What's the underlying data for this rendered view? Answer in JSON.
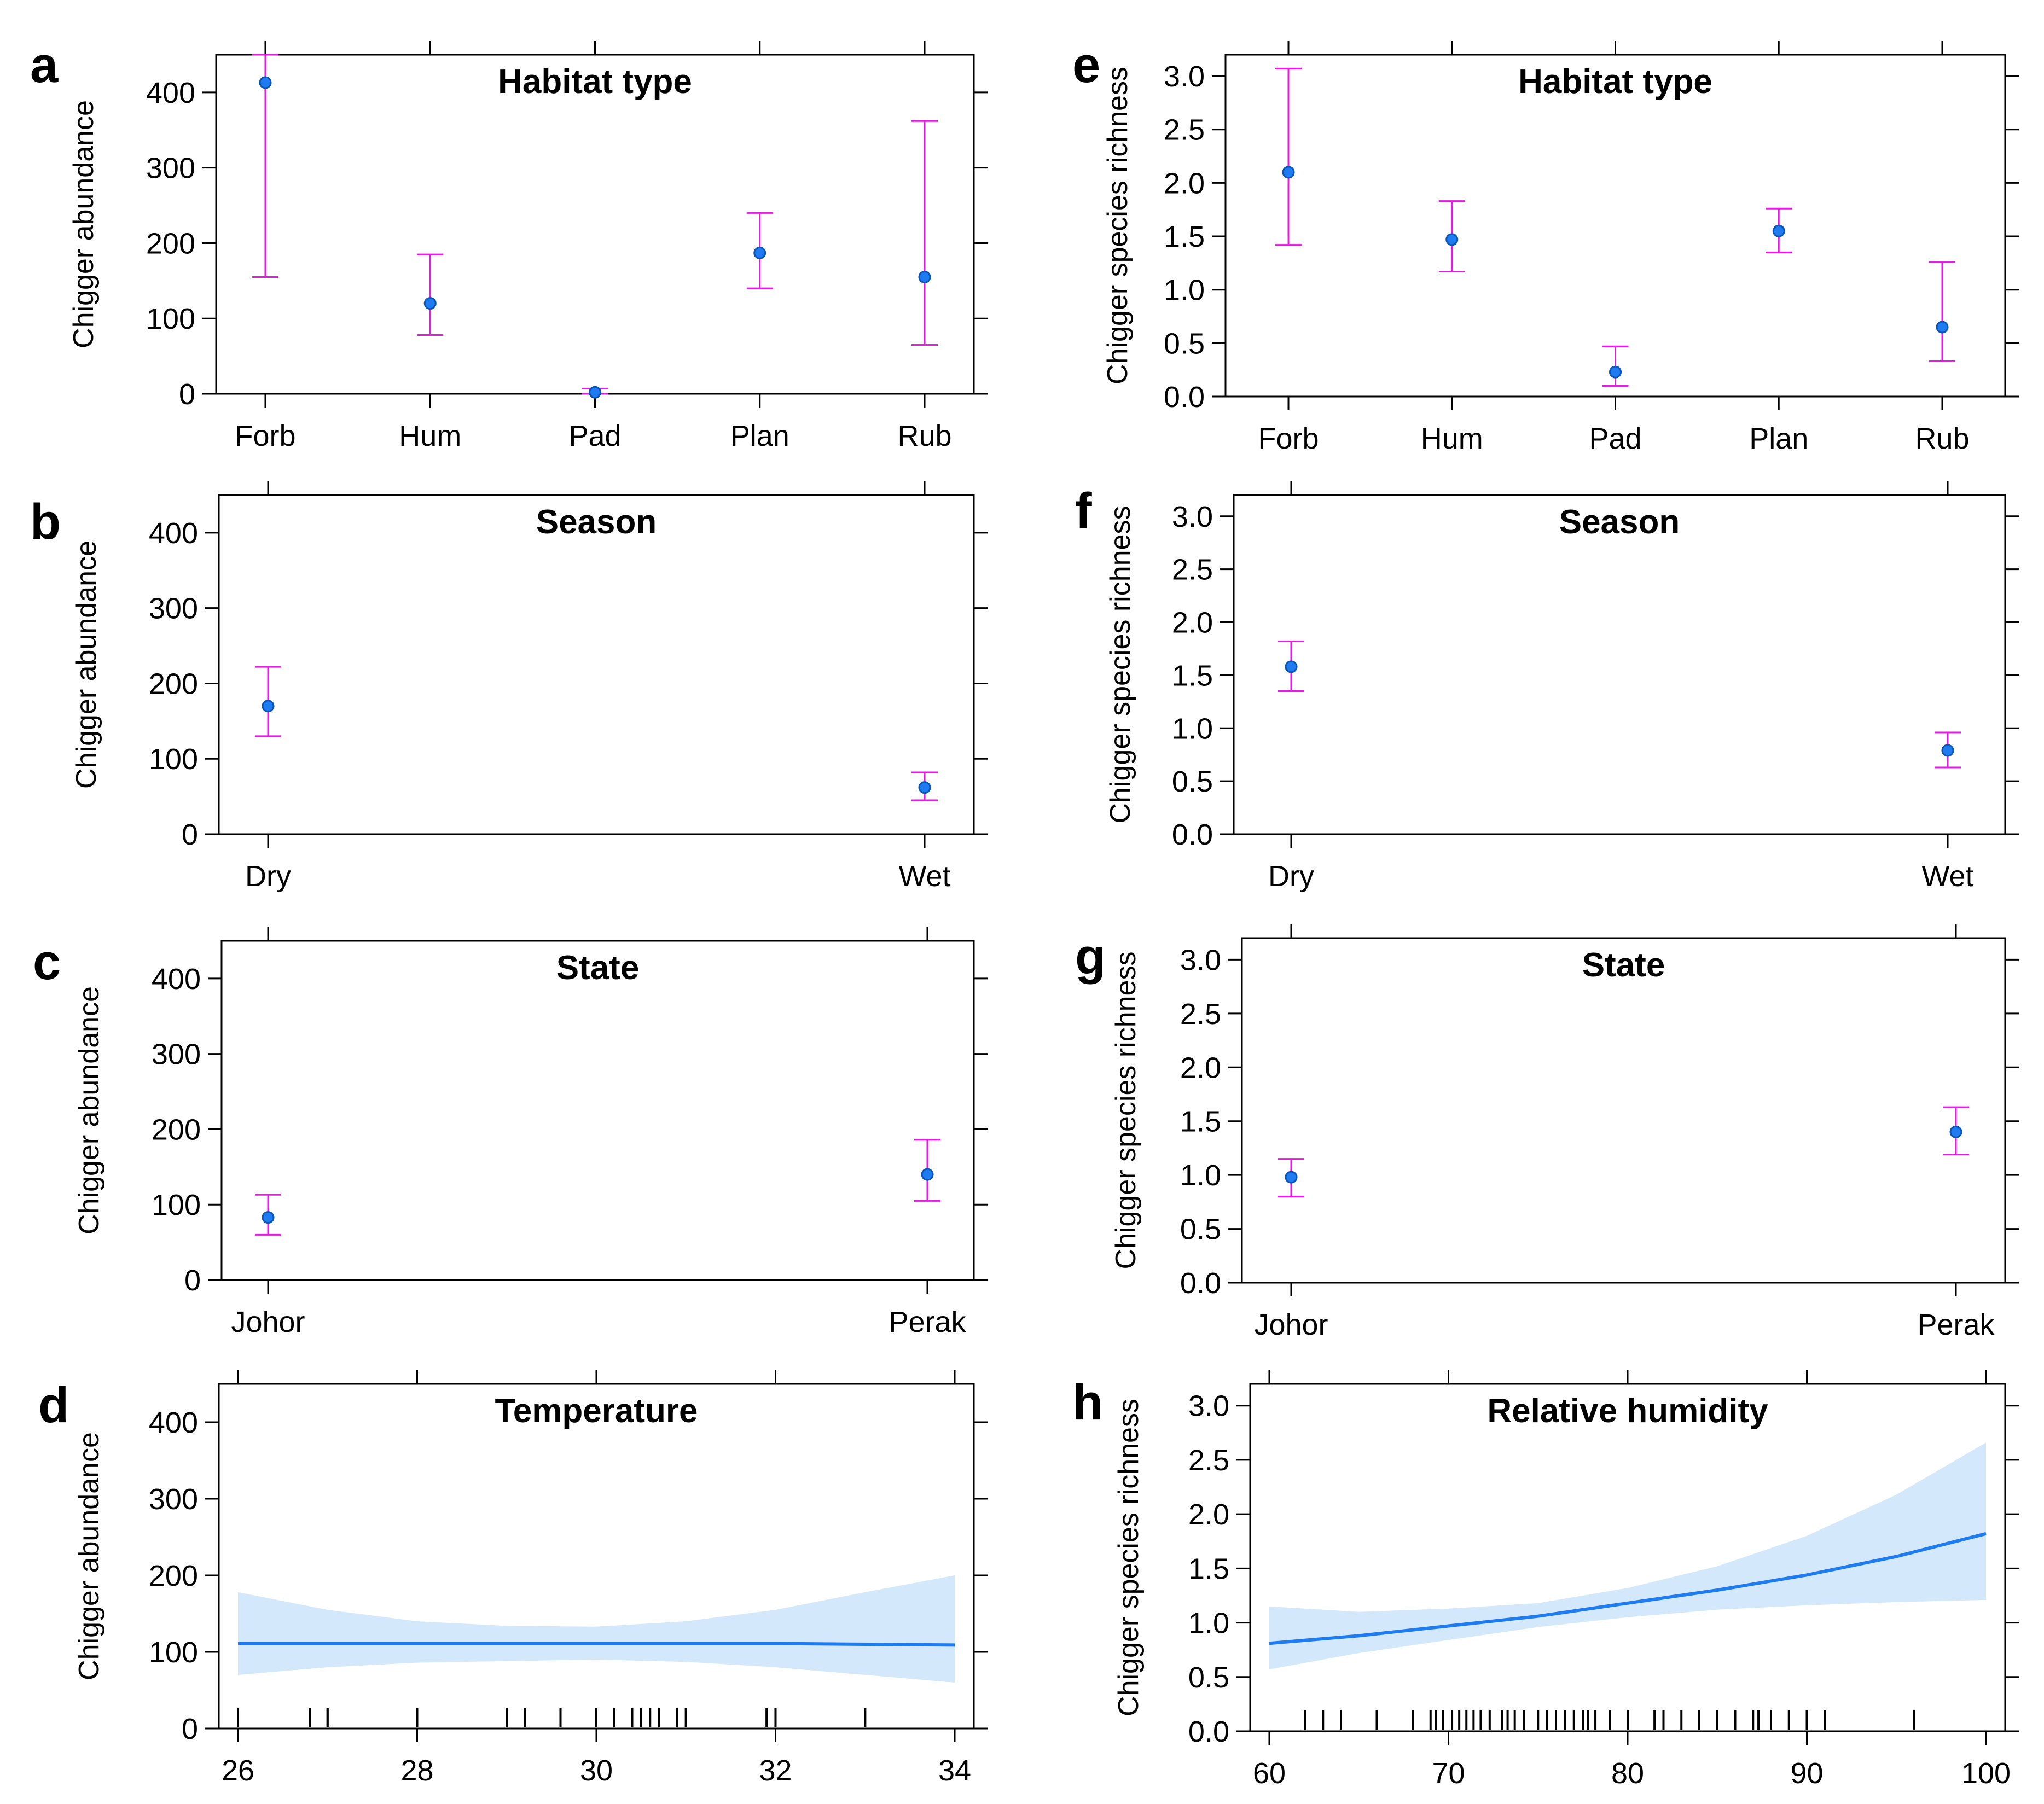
{
  "figure": {
    "panels": [
      {
        "letter": "a",
        "title": "Habitat type",
        "ylabel": "Chigger abundance"
      },
      {
        "letter": "b",
        "title": "Season",
        "ylabel": "Chigger abundance"
      },
      {
        "letter": "c",
        "title": "State",
        "ylabel": "Chigger abundance"
      },
      {
        "letter": "d",
        "title": "Temperature",
        "ylabel": "Chigger abundance"
      },
      {
        "letter": "e",
        "title": "Habitat type",
        "ylabel": "Chigger species richness"
      },
      {
        "letter": "f",
        "title": "Season",
        "ylabel": "Chigger species richness"
      },
      {
        "letter": "g",
        "title": "State",
        "ylabel": "Chigger species richness"
      },
      {
        "letter": "h",
        "title": "Relative humidity",
        "ylabel": "Chigger species richness"
      }
    ]
  },
  "colors": {
    "point": "#1e7cf0",
    "errorbar": "#e619e6",
    "band": "#d4e8fb",
    "fit": "#1e7cf0"
  },
  "chart_data": [
    {
      "panel": "a",
      "type": "errorbar",
      "title": "Habitat type",
      "xlabel": "",
      "ylabel": "Chigger abundance",
      "categories": [
        "Forb",
        "Hum",
        "Pad",
        "Plan",
        "Rub"
      ],
      "values": [
        413,
        120,
        2,
        187,
        155
      ],
      "lower": [
        155,
        78,
        0,
        140,
        65
      ],
      "upper": [
        450,
        185,
        7,
        240,
        362
      ],
      "ylim": [
        0,
        450
      ],
      "yticks": [
        0,
        100,
        200,
        300,
        400
      ]
    },
    {
      "panel": "b",
      "type": "errorbar",
      "title": "Season",
      "xlabel": "",
      "ylabel": "Chigger abundance",
      "categories": [
        "Dry",
        "Wet"
      ],
      "values": [
        170,
        62
      ],
      "lower": [
        130,
        45
      ],
      "upper": [
        222,
        82
      ],
      "ylim": [
        0,
        450
      ],
      "yticks": [
        0,
        100,
        200,
        300,
        400
      ]
    },
    {
      "panel": "c",
      "type": "errorbar",
      "title": "State",
      "xlabel": "",
      "ylabel": "Chigger abundance",
      "categories": [
        "Johor",
        "Perak"
      ],
      "values": [
        83,
        140
      ],
      "lower": [
        60,
        105
      ],
      "upper": [
        113,
        186
      ],
      "ylim": [
        0,
        450
      ],
      "yticks": [
        0,
        100,
        200,
        300,
        400
      ]
    },
    {
      "panel": "d",
      "type": "line",
      "title": "Temperature",
      "xlabel": "",
      "ylabel": "Chigger abundance",
      "x": [
        26,
        27,
        28,
        29,
        30,
        31,
        32,
        33,
        34
      ],
      "fit": [
        111,
        111,
        111,
        111,
        111,
        111,
        111,
        110,
        109
      ],
      "lower": [
        70,
        80,
        86,
        88,
        90,
        87,
        80,
        70,
        60
      ],
      "upper": [
        178,
        155,
        140,
        134,
        133,
        140,
        155,
        178,
        200
      ],
      "rug": [
        26,
        26.8,
        27,
        27,
        28,
        29,
        29,
        29.2,
        29.6,
        30,
        30.2,
        30.4,
        30.5,
        30.6,
        30.7,
        30.9,
        31,
        31,
        31.9,
        32,
        33,
        33
      ],
      "xlim": [
        26,
        34
      ],
      "xticks": [
        26,
        28,
        30,
        32,
        34
      ],
      "ylim": [
        0,
        450
      ],
      "yticks": [
        0,
        100,
        200,
        300,
        400
      ]
    },
    {
      "panel": "e",
      "type": "errorbar",
      "title": "Habitat type",
      "xlabel": "",
      "ylabel": "Chigger species richness",
      "categories": [
        "Forb",
        "Hum",
        "Pad",
        "Plan",
        "Rub"
      ],
      "values": [
        2.1,
        1.47,
        0.23,
        1.55,
        0.65
      ],
      "lower": [
        1.42,
        1.17,
        0.1,
        1.35,
        0.33
      ],
      "upper": [
        3.07,
        1.83,
        0.47,
        1.76,
        1.26
      ],
      "ylim": [
        0,
        3.2
      ],
      "yticks": [
        0.0,
        0.5,
        1.0,
        1.5,
        2.0,
        2.5,
        3.0
      ]
    },
    {
      "panel": "f",
      "type": "errorbar",
      "title": "Season",
      "xlabel": "",
      "ylabel": "Chigger species richness",
      "categories": [
        "Dry",
        "Wet"
      ],
      "values": [
        1.58,
        0.79
      ],
      "lower": [
        1.35,
        0.63
      ],
      "upper": [
        1.82,
        0.96
      ],
      "ylim": [
        0,
        3.2
      ],
      "yticks": [
        0.0,
        0.5,
        1.0,
        1.5,
        2.0,
        2.5,
        3.0
      ]
    },
    {
      "panel": "g",
      "type": "errorbar",
      "title": "State",
      "xlabel": "",
      "ylabel": "Chigger species richness",
      "categories": [
        "Johor",
        "Perak"
      ],
      "values": [
        0.98,
        1.4
      ],
      "lower": [
        0.8,
        1.19
      ],
      "upper": [
        1.15,
        1.63
      ],
      "ylim": [
        0,
        3.2
      ],
      "yticks": [
        0.0,
        0.5,
        1.0,
        1.5,
        2.0,
        2.5,
        3.0
      ]
    },
    {
      "panel": "h",
      "type": "line",
      "title": "Relative humidity",
      "xlabel": "",
      "ylabel": "Chigger species richness",
      "x": [
        60,
        65,
        70,
        75,
        80,
        85,
        90,
        95,
        100
      ],
      "fit": [
        0.81,
        0.88,
        0.97,
        1.06,
        1.18,
        1.3,
        1.44,
        1.61,
        1.82
      ],
      "lower": [
        0.57,
        0.72,
        0.84,
        0.96,
        1.05,
        1.12,
        1.16,
        1.19,
        1.21
      ],
      "upper": [
        1.15,
        1.1,
        1.13,
        1.18,
        1.32,
        1.52,
        1.8,
        2.18,
        2.66
      ],
      "rug": [
        62,
        63,
        64,
        66,
        68,
        69,
        69.3,
        69.7,
        70.2,
        70.6,
        71,
        71.4,
        71.8,
        72.3,
        73,
        73.3,
        73.7,
        74.2,
        75,
        75.5,
        76,
        76.5,
        77,
        77.5,
        77.8,
        78.2,
        79,
        80,
        81.5,
        82,
        83,
        84,
        85,
        86,
        87,
        87.3,
        88,
        89,
        90,
        91,
        96
      ],
      "xlim": [
        60,
        100
      ],
      "xticks": [
        60,
        70,
        80,
        90,
        100
      ],
      "ylim": [
        0,
        3.2
      ],
      "yticks": [
        0.0,
        0.5,
        1.0,
        1.5,
        2.0,
        2.5,
        3.0
      ]
    }
  ]
}
